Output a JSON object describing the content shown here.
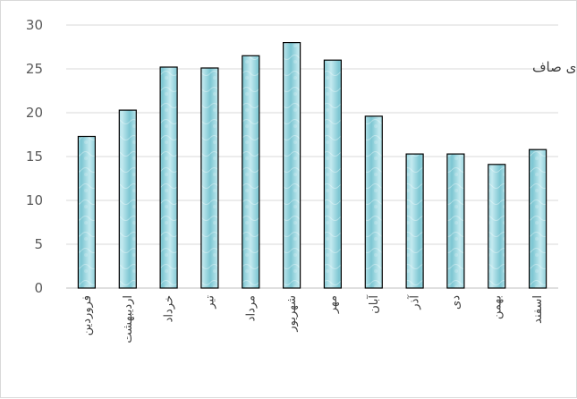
{
  "chart_data": {
    "type": "bar",
    "title": "تعداد روزهای صاف",
    "categories": [
      "فروردین",
      "اردیبهشت",
      "خرداد",
      "تیر",
      "مرداد",
      "شهریور",
      "مهر",
      "آبان",
      "آذر",
      "دی",
      "بهمن",
      "اسفند"
    ],
    "values": [
      17.3,
      20.3,
      25.2,
      25.1,
      26.5,
      28.0,
      26.0,
      19.6,
      15.3,
      15.3,
      14.1,
      15.8
    ],
    "xlabel": "",
    "ylabel": "",
    "ylim": [
      0,
      30
    ],
    "yticks": [
      0,
      5,
      10,
      15,
      20,
      25,
      30
    ],
    "grid": true,
    "legend": "none",
    "colors": {
      "bar_fill": "#a9dde6",
      "bar_fill_dark": "#6fbecb",
      "bar_stroke": "#000000",
      "grid": "#d9d9d9",
      "axis": "#bfbfbf"
    }
  }
}
